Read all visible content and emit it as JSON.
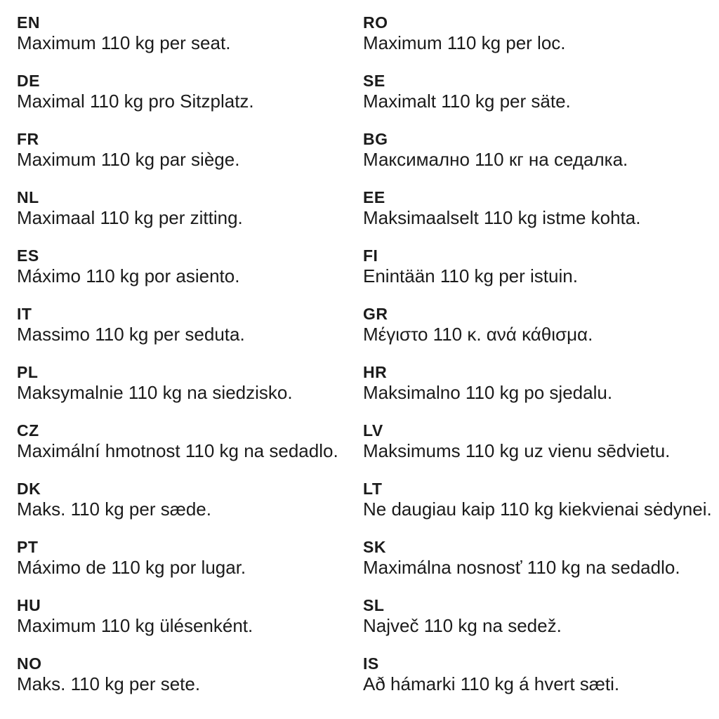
{
  "page": {
    "background_color": "#ffffff",
    "text_color": "#1b1b1b"
  },
  "columns": {
    "left": {
      "entries": [
        {
          "code": "EN",
          "text": "Maximum 110 kg per seat."
        },
        {
          "code": "DE",
          "text": "Maximal 110 kg pro Sitzplatz."
        },
        {
          "code": "FR",
          "text": "Maximum 110 kg par siège."
        },
        {
          "code": "NL",
          "text": "Maximaal 110 kg per zitting."
        },
        {
          "code": "ES",
          "text": "Máximo 110 kg por asiento."
        },
        {
          "code": "IT",
          "text": "Massimo 110 kg per seduta."
        },
        {
          "code": "PL",
          "text": "Maksymalnie 110 kg na siedzisko."
        },
        {
          "code": "CZ",
          "text": "Maximální hmotnost 110 kg na sedadlo."
        },
        {
          "code": "DK",
          "text": "Maks. 110 kg per sæde."
        },
        {
          "code": "PT",
          "text": "Máximo de 110 kg por lugar."
        },
        {
          "code": "HU",
          "text": "Maximum 110 kg ülésenként."
        },
        {
          "code": "NO",
          "text": "Maks. 110 kg per sete."
        }
      ]
    },
    "right": {
      "entries": [
        {
          "code": "RO",
          "text": "Maximum 110 kg per loc."
        },
        {
          "code": "SE",
          "text": "Maximalt 110 kg per säte."
        },
        {
          "code": "BG",
          "text": "Максимално 110 кг на седалка."
        },
        {
          "code": "EE",
          "text": "Maksimaalselt 110 kg istme kohta."
        },
        {
          "code": "FI",
          "text": "Enintään 110 kg per istuin."
        },
        {
          "code": "GR",
          "text": "Μέγιστο 110 κ. ανά κάθισμα."
        },
        {
          "code": "HR",
          "text": "Maksimalno 110 kg po sjedalu."
        },
        {
          "code": "LV",
          "text": "Maksimums 110 kg uz vienu sēdvietu."
        },
        {
          "code": "LT",
          "text": "Ne daugiau kaip 110 kg kiekvienai sėdynei."
        },
        {
          "code": "SK",
          "text": "Maximálna nosnosť 110 kg na sedadlo."
        },
        {
          "code": "SL",
          "text": "Največ 110 kg na sedež."
        },
        {
          "code": "IS",
          "text": "Að hámarki 110 kg á hvert sæti."
        }
      ]
    }
  }
}
